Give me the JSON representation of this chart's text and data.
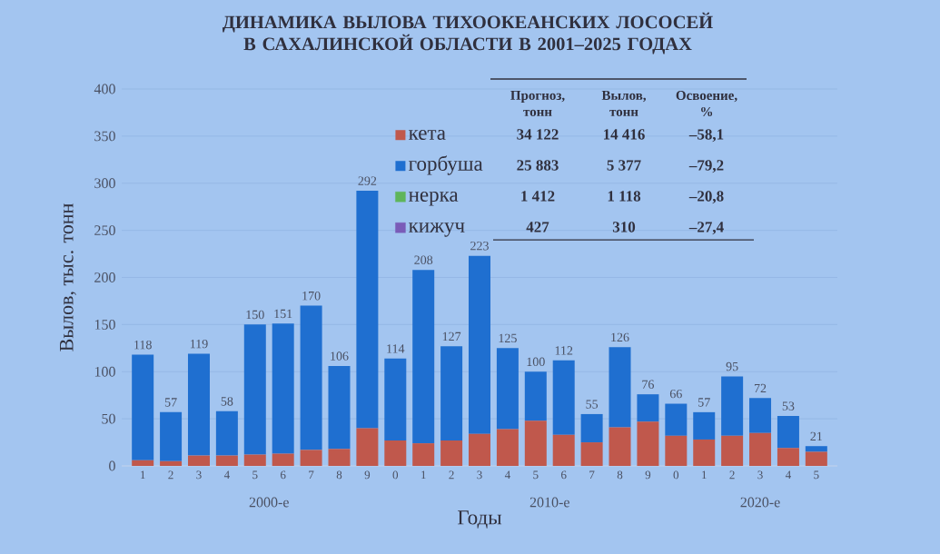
{
  "chart_data": {
    "type": "bar",
    "title": "ДИНАМИКА ВЫЛОВА ТИХООКЕАНСКИХ ЛОСОСЕЙ В САХАЛИНСКОЙ ОБЛАСТИ В 2001–2025 ГОДАХ",
    "xlabel": "Годы",
    "ylabel": "Вылов, тыс. тонн",
    "categories": [
      "1",
      "2",
      "3",
      "4",
      "5",
      "6",
      "7",
      "8",
      "9",
      "0",
      "1",
      "2",
      "3",
      "4",
      "5",
      "6",
      "7",
      "8",
      "9",
      "0",
      "1",
      "2",
      "3",
      "4",
      "5"
    ],
    "series": [
      {
        "name": "кета",
        "color": "#c0584c",
        "values": [
          6,
          5,
          11,
          11,
          12,
          13,
          17,
          18,
          40,
          27,
          24,
          27,
          34,
          39,
          48,
          33,
          25,
          41,
          47,
          32,
          28,
          32,
          35,
          19,
          15
        ]
      },
      {
        "name": "горбуша",
        "color": "#1f6fd0",
        "values": [
          112,
          52,
          108,
          47,
          138,
          138,
          153,
          88,
          252,
          87,
          184,
          100,
          189,
          86,
          52,
          79,
          30,
          85,
          29,
          34,
          29,
          63,
          37,
          34,
          6
        ]
      },
      {
        "name": "нерка",
        "color": "#5fb55a",
        "values": [
          null,
          null,
          null,
          null,
          null,
          null,
          null,
          null,
          null,
          null,
          null,
          null,
          null,
          null,
          null,
          null,
          null,
          null,
          null,
          null,
          null,
          null,
          null,
          null,
          null
        ]
      },
      {
        "name": "кижуч",
        "color": "#7a5cb8",
        "values": [
          null,
          null,
          null,
          null,
          null,
          null,
          null,
          null,
          null,
          null,
          null,
          null,
          null,
          null,
          null,
          null,
          null,
          null,
          null,
          null,
          null,
          null,
          null,
          null,
          null
        ]
      }
    ],
    "stacked": true,
    "ylim": [
      0,
      400
    ],
    "yticks": [
      0,
      50,
      100,
      150,
      200,
      250,
      300,
      350,
      400
    ],
    "grid": "y",
    "legend": "top",
    "totals": [
      "118",
      "57",
      "119",
      "58",
      "150",
      "151",
      "170",
      "106",
      "292",
      "114",
      "208",
      "127",
      "223",
      "125",
      "100",
      "112",
      "55",
      "126",
      "76",
      "66",
      "57",
      "95",
      "72",
      "53",
      "21"
    ],
    "annotations": [
      "2000-е",
      "2010-е",
      "2020-е",
      "Прогноз, тонн",
      "Вылов, тонн",
      "Освоение, %",
      "34 122",
      "14 416",
      "–58,1",
      "25 883",
      "5 377",
      "–79,2",
      "1 412",
      "1 118",
      "–20,8",
      "427",
      "310",
      "–27,4"
    ]
  }
}
